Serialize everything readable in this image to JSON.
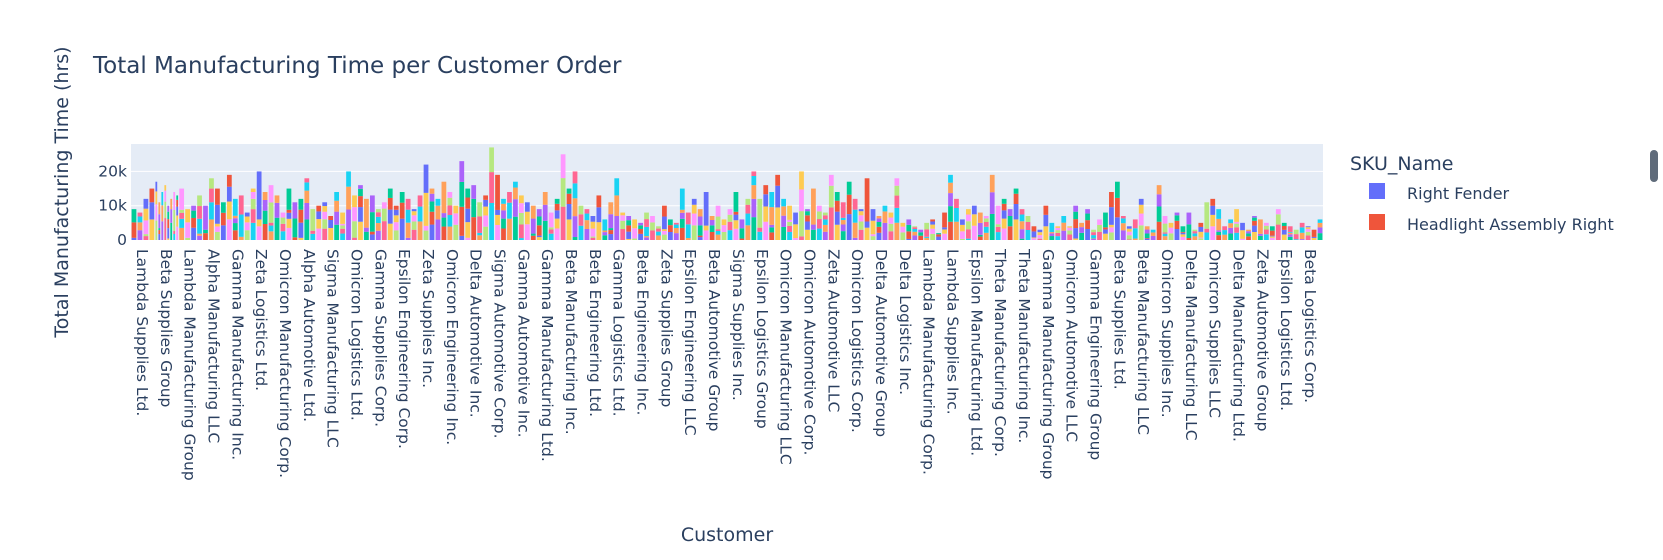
{
  "chart_data": {
    "type": "bar",
    "barmode": "stack",
    "title": "Total Manufacturing Time per Customer Order",
    "xlabel": "Customer",
    "ylabel": "Total Manufacturing Time (hrs)",
    "ylim": [
      0,
      28000
    ],
    "yticks": [
      0,
      10000,
      20000
    ],
    "ytick_labels": [
      "0",
      "10k",
      "20k"
    ],
    "grid": true,
    "legend": {
      "title": "SKU_Name",
      "placement": "right",
      "entries": [
        {
          "name": "Right Fender",
          "color": "#636efa"
        },
        {
          "name": "Headlight Assembly Right",
          "color": "#EF553B"
        }
      ]
    },
    "customers": [
      {
        "name": "Lambda Supplies Ltd.",
        "totals": [
          9000,
          8000,
          12000,
          15000
        ]
      },
      {
        "name": "Beta Supplies Group",
        "totals": [
          17000,
          11000,
          14000,
          16000,
          10000,
          12000,
          14000,
          13000
        ]
      },
      {
        "name": "Lambda Manufacturing Group",
        "totals": [
          15000,
          9000,
          10000,
          13000
        ]
      },
      {
        "name": "Alpha Manufacturing LLC",
        "totals": [
          10000,
          18000,
          15000,
          11000
        ]
      },
      {
        "name": "Gamma Manufacturing Inc.",
        "totals": [
          19000,
          12000,
          13000,
          8000
        ]
      },
      {
        "name": "Zeta Logistics Ltd.",
        "totals": [
          15000,
          20000,
          14000,
          16000
        ]
      },
      {
        "name": "Omicron Manufacturing Corp.",
        "totals": [
          13000,
          8000,
          15000,
          11000
        ]
      },
      {
        "name": "Alpha Automotive Ltd.",
        "totals": [
          12000,
          18000,
          9000,
          10000
        ]
      },
      {
        "name": "Sigma Manufacturing LLC",
        "totals": [
          11000,
          7000,
          14000,
          8000
        ]
      },
      {
        "name": "Omicron Logistics Ltd.",
        "totals": [
          20000,
          13000,
          16000,
          12000
        ]
      },
      {
        "name": "Gamma Supplies Corp.",
        "totals": [
          13000,
          9000,
          11000,
          15000
        ]
      },
      {
        "name": "Epsilon Engineering Corp.",
        "totals": [
          10000,
          14000,
          12000,
          9000
        ]
      },
      {
        "name": "Zeta Supplies Inc.",
        "totals": [
          13000,
          22000,
          15000,
          12000
        ]
      },
      {
        "name": "Omicron Engineering Inc.",
        "totals": [
          17000,
          14000,
          10000,
          23000
        ]
      },
      {
        "name": "Delta Automotive Inc.",
        "totals": [
          15000,
          16000,
          11000,
          13000
        ]
      },
      {
        "name": "Sigma Automotive Corp.",
        "totals": [
          27000,
          19000,
          12000,
          14000
        ]
      },
      {
        "name": "Gamma Automotive Inc.",
        "totals": [
          17000,
          13000,
          11000,
          10000
        ]
      },
      {
        "name": "Gamma Manufacturing Ltd.",
        "totals": [
          9000,
          14000,
          8000,
          12000
        ]
      },
      {
        "name": "Beta Manufacturing Inc.",
        "totals": [
          25000,
          15000,
          20000,
          10000
        ]
      },
      {
        "name": "Beta Engineering Ltd.",
        "totals": [
          9000,
          7000,
          13000,
          6000
        ]
      },
      {
        "name": "Gamma Logistics Ltd.",
        "totals": [
          11000,
          18000,
          8000,
          7000
        ]
      },
      {
        "name": "Beta Engineering Inc.",
        "totals": [
          6000,
          5000,
          8000,
          7000
        ]
      },
      {
        "name": "Zeta Supplies Group",
        "totals": [
          4000,
          10000,
          6000,
          5000
        ]
      },
      {
        "name": "Epsilon Engineering LLC",
        "totals": [
          15000,
          8000,
          12000,
          9000
        ]
      },
      {
        "name": "Beta Automotive Group",
        "totals": [
          14000,
          7000,
          10000,
          6000
        ]
      },
      {
        "name": "Sigma Supplies Inc.",
        "totals": [
          9000,
          14000,
          6000,
          12000
        ]
      },
      {
        "name": "Epsilon Logistics Group",
        "totals": [
          20000,
          12000,
          16000,
          14000
        ]
      },
      {
        "name": "Omicron Manufacturing LLC",
        "totals": [
          19000,
          12000,
          10000,
          8000
        ]
      },
      {
        "name": "Omicron Automotive Corp.",
        "totals": [
          20000,
          9000,
          15000,
          10000
        ]
      },
      {
        "name": "Zeta Automotive LLC",
        "totals": [
          8000,
          19000,
          14000,
          11000
        ]
      },
      {
        "name": "Omicron Logistics Corp.",
        "totals": [
          17000,
          12000,
          9000,
          18000
        ]
      },
      {
        "name": "Delta Automotive Group",
        "totals": [
          9000,
          7000,
          10000,
          8000
        ]
      },
      {
        "name": "Delta Logistics Inc.",
        "totals": [
          18000,
          5000,
          6000,
          4000
        ]
      },
      {
        "name": "Lambda Manufacturing Corp.",
        "totals": [
          3000,
          5000,
          6000,
          2000
        ]
      },
      {
        "name": "Lambda Supplies Inc.",
        "totals": [
          8000,
          19000,
          12000,
          6000
        ]
      },
      {
        "name": "Epsilon Manufacturing Ltd.",
        "totals": [
          9000,
          10000,
          8000,
          7000
        ]
      },
      {
        "name": "Theta Manufacturing Corp.",
        "totals": [
          19000,
          10000,
          12000,
          9000
        ]
      },
      {
        "name": "Theta Manufacturing Inc.",
        "totals": [
          15000,
          9000,
          7000,
          4000
        ]
      },
      {
        "name": "Gamma Manufacturing Group",
        "totals": [
          3000,
          10000,
          5000,
          4000
        ]
      },
      {
        "name": "Omicron Automotive LLC",
        "totals": [
          7000,
          4000,
          10000,
          5000
        ]
      },
      {
        "name": "Gamma Engineering Group",
        "totals": [
          9000,
          3000,
          6000,
          8000
        ]
      },
      {
        "name": "Beta Supplies Ltd.",
        "totals": [
          14000,
          17000,
          7000,
          4000
        ]
      },
      {
        "name": "Beta Manufacturing LLC",
        "totals": [
          6000,
          12000,
          4000,
          3000
        ]
      },
      {
        "name": "Omicron Supplies Inc.",
        "totals": [
          16000,
          7000,
          5000,
          8000
        ]
      },
      {
        "name": "Delta Manufacturing LLC",
        "totals": [
          4000,
          8000,
          3000,
          5000
        ]
      },
      {
        "name": "Omicron Supplies LLC",
        "totals": [
          11000,
          12000,
          9000,
          4000
        ]
      },
      {
        "name": "Delta Manufacturing Ltd.",
        "totals": [
          6000,
          9000,
          5000,
          3000
        ]
      },
      {
        "name": "Zeta Automotive Group",
        "totals": [
          7000,
          6000,
          5000,
          4000
        ]
      },
      {
        "name": "Epsilon Logistics Ltd.",
        "totals": [
          9000,
          5000,
          4000,
          3000
        ]
      },
      {
        "name": "Beta Logistics Corp.",
        "totals": [
          5000,
          4000,
          3000,
          6000
        ]
      }
    ],
    "sku_colors": [
      "#636efa",
      "#EF553B",
      "#00cc96",
      "#ab63fa",
      "#FFA15A",
      "#19d3f3",
      "#FF6692",
      "#B6E880",
      "#FF97FF",
      "#FECB52"
    ]
  },
  "chart_data_note_colors_only": true
}
